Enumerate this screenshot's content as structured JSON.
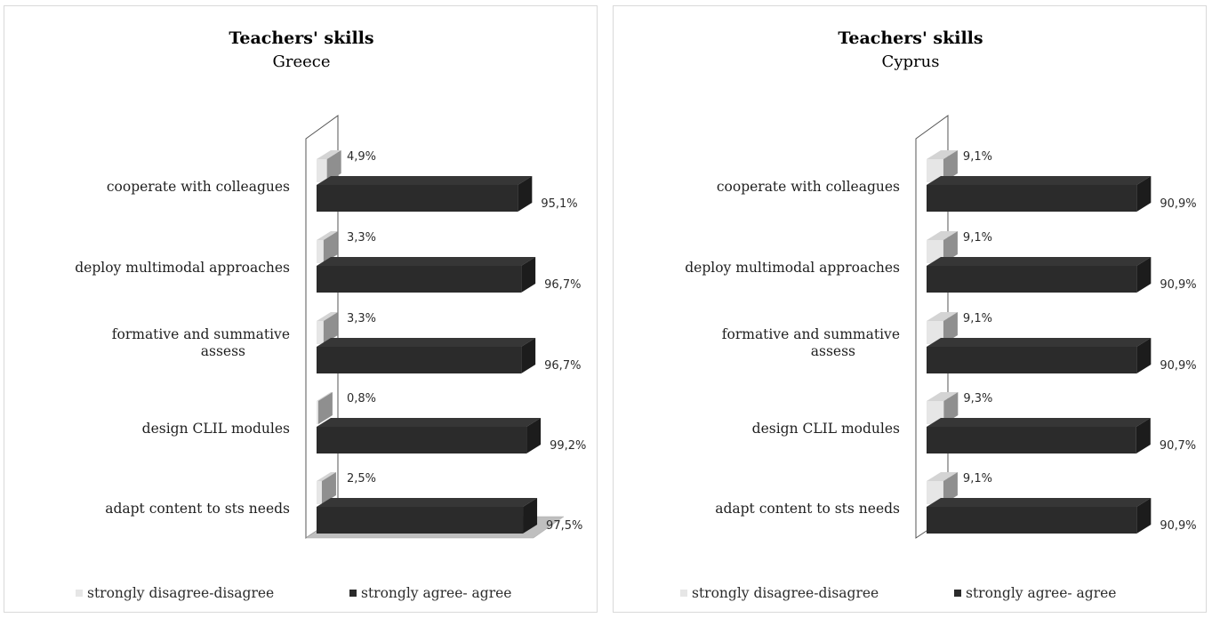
{
  "chart_data": [
    {
      "type": "bar",
      "orientation": "horizontal",
      "style": "3d-clustered",
      "title": "Teachers' skills",
      "subtitle": "Greece",
      "categories": [
        "cooperate with colleagues",
        "deploy  multimodal approaches",
        "formative and summative assess",
        "design CLIL modules",
        "adapt content to sts needs"
      ],
      "series": [
        {
          "name": "strongly disagree-disagree",
          "color": "#e6e6e6",
          "values": [
            4.9,
            3.3,
            3.3,
            0.8,
            2.5
          ],
          "labels": [
            "4,9%",
            "3,3%",
            "3,3%",
            "0,8%",
            "2,5%"
          ]
        },
        {
          "name": "strongly agree- agree",
          "color": "#2b2b2b",
          "values": [
            95.1,
            96.7,
            96.7,
            99.2,
            97.5
          ],
          "labels": [
            "95,1%",
            "96,7%",
            "96,7%",
            "99,2%",
            "97,5%"
          ]
        }
      ],
      "xlim": [
        0,
        100
      ],
      "legend": "bottom"
    },
    {
      "type": "bar",
      "orientation": "horizontal",
      "style": "3d-clustered",
      "title": "Teachers' skills",
      "subtitle": "Cyprus",
      "categories": [
        "cooperate with colleagues",
        "deploy  multimodal approaches",
        "formative and summative assess",
        "design CLIL modules",
        "adapt content to sts needs"
      ],
      "series": [
        {
          "name": "strongly disagree-disagree",
          "color": "#e6e6e6",
          "values": [
            9.1,
            9.1,
            9.1,
            9.3,
            9.1
          ],
          "labels": [
            "9,1%",
            "9,1%",
            "9,1%",
            "9,3%",
            "9,1%"
          ]
        },
        {
          "name": "strongly agree- agree",
          "color": "#2b2b2b",
          "values": [
            90.9,
            90.9,
            90.9,
            90.7,
            90.9
          ],
          "labels": [
            "90,9%",
            "90,9%",
            "90,9%",
            "90,7%",
            "90,9%"
          ]
        }
      ],
      "xlim": [
        0,
        100
      ],
      "legend": "bottom"
    }
  ]
}
